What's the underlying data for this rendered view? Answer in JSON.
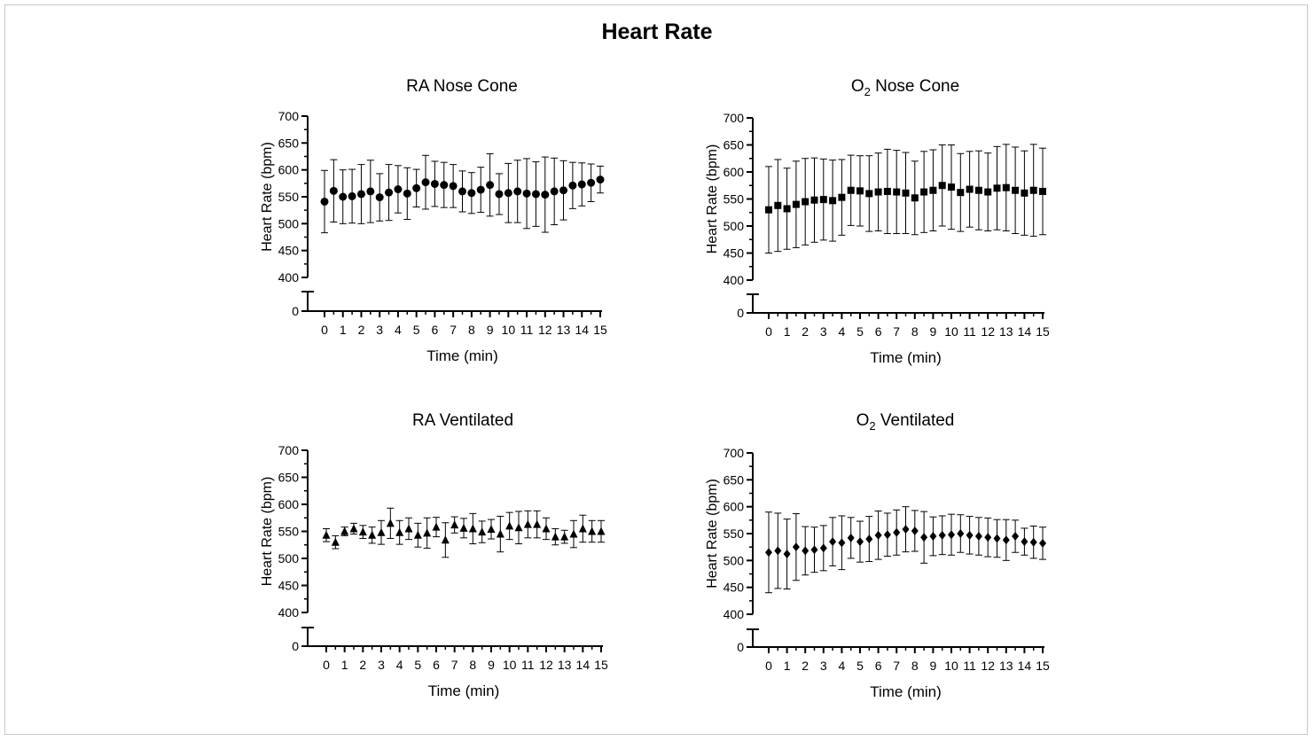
{
  "page": {
    "title": "Heart Rate"
  },
  "chart_data": [
    {
      "type": "scatter",
      "title": "RA Nose Cone",
      "title_main": "RA Nose Cone",
      "title_sub": "",
      "title_rest": "",
      "xlabel": "Time (min)",
      "ylabel": "Heart Rate (bpm)",
      "marker": "circle",
      "xlim": [
        0,
        15
      ],
      "ylim": [
        400,
        700
      ],
      "y_break": true,
      "yticks": [
        0,
        400,
        450,
        500,
        550,
        600,
        650,
        700
      ],
      "xticks": [
        0,
        1,
        2,
        3,
        4,
        5,
        6,
        7,
        8,
        9,
        10,
        11,
        12,
        13,
        14,
        15
      ],
      "x": [
        0,
        0.5,
        1,
        1.5,
        2,
        2.5,
        3,
        3.5,
        4,
        4.5,
        5,
        5.5,
        6,
        6.5,
        7,
        7.5,
        8,
        8.5,
        9,
        9.5,
        10,
        10.5,
        11,
        11.5,
        12,
        12.5,
        13,
        13.5,
        14,
        14.5,
        15
      ],
      "y": [
        541,
        561,
        550,
        551,
        555,
        560,
        549,
        558,
        564,
        556,
        566,
        577,
        574,
        572,
        570,
        560,
        557,
        563,
        572,
        555,
        557,
        560,
        556,
        555,
        554,
        560,
        562,
        571,
        573,
        576,
        582
      ],
      "error": [
        58,
        58,
        50,
        50,
        55,
        58,
        44,
        52,
        44,
        48,
        35,
        50,
        42,
        42,
        40,
        38,
        38,
        42,
        58,
        38,
        55,
        58,
        65,
        60,
        70,
        62,
        55,
        43,
        40,
        35,
        25
      ]
    },
    {
      "type": "scatter",
      "title": "O2 Nose Cone",
      "title_main": "O",
      "title_sub": "2",
      "title_rest": " Nose Cone",
      "xlabel": "Time (min)",
      "ylabel": "Heart Rate (bpm)",
      "marker": "square",
      "xlim": [
        0,
        15
      ],
      "ylim": [
        400,
        700
      ],
      "y_break": true,
      "yticks": [
        0,
        400,
        450,
        500,
        550,
        600,
        650,
        700
      ],
      "xticks": [
        0,
        1,
        2,
        3,
        4,
        5,
        6,
        7,
        8,
        9,
        10,
        11,
        12,
        13,
        14,
        15
      ],
      "x": [
        0,
        0.5,
        1,
        1.5,
        2,
        2.5,
        3,
        3.5,
        4,
        4.5,
        5,
        5.5,
        6,
        6.5,
        7,
        7.5,
        8,
        8.5,
        9,
        9.5,
        10,
        10.5,
        11,
        11.5,
        12,
        12.5,
        13,
        13.5,
        14,
        14.5,
        15
      ],
      "y": [
        530,
        538,
        532,
        540,
        545,
        548,
        549,
        547,
        553,
        566,
        565,
        560,
        563,
        564,
        563,
        561,
        552,
        563,
        566,
        575,
        572,
        562,
        568,
        566,
        563,
        570,
        571,
        566,
        561,
        566,
        564
      ],
      "error": [
        80,
        85,
        75,
        80,
        80,
        78,
        75,
        75,
        70,
        65,
        65,
        70,
        72,
        78,
        77,
        75,
        68,
        75,
        75,
        75,
        78,
        72,
        70,
        73,
        72,
        77,
        80,
        80,
        78,
        85,
        80
      ]
    },
    {
      "type": "scatter",
      "title": "RA Ventilated",
      "title_main": "RA Ventilated",
      "title_sub": "",
      "title_rest": "",
      "xlabel": "Time (min)",
      "ylabel": "Heart Rate (bpm)",
      "marker": "triangle",
      "xlim": [
        0,
        15
      ],
      "ylim": [
        400,
        700
      ],
      "y_break": true,
      "yticks": [
        0,
        400,
        450,
        500,
        550,
        600,
        650,
        700
      ],
      "xticks": [
        0,
        1,
        2,
        3,
        4,
        5,
        6,
        7,
        8,
        9,
        10,
        11,
        12,
        13,
        14,
        15
      ],
      "x": [
        0,
        0.5,
        1,
        1.5,
        2,
        2.5,
        3,
        3.5,
        4,
        4.5,
        5,
        5.5,
        6,
        6.5,
        7,
        7.5,
        8,
        8.5,
        9,
        9.5,
        10,
        10.5,
        11,
        11.5,
        12,
        12.5,
        13,
        13.5,
        14,
        14.5,
        15
      ],
      "y": [
        543,
        530,
        550,
        555,
        549,
        543,
        548,
        565,
        548,
        555,
        543,
        547,
        558,
        534,
        562,
        556,
        555,
        549,
        554,
        545,
        560,
        557,
        563,
        563,
        555,
        540,
        540,
        545,
        555,
        550,
        550
      ],
      "error": [
        12,
        12,
        8,
        10,
        12,
        15,
        22,
        28,
        22,
        20,
        22,
        28,
        18,
        32,
        15,
        18,
        28,
        20,
        18,
        33,
        25,
        30,
        25,
        25,
        20,
        15,
        12,
        25,
        25,
        20,
        20
      ]
    },
    {
      "type": "scatter",
      "title": "O2 Ventilated",
      "title_main": "O",
      "title_sub": "2",
      "title_rest": " Ventilated",
      "xlabel": "Time (min)",
      "ylabel": "Heart Rate (bpm)",
      "marker": "diamond",
      "xlim": [
        0,
        15
      ],
      "ylim": [
        400,
        700
      ],
      "y_break": true,
      "yticks": [
        0,
        400,
        450,
        500,
        550,
        600,
        650,
        700
      ],
      "xticks": [
        0,
        1,
        2,
        3,
        4,
        5,
        6,
        7,
        8,
        9,
        10,
        11,
        12,
        13,
        14,
        15
      ],
      "x": [
        0,
        0.5,
        1,
        1.5,
        2,
        2.5,
        3,
        3.5,
        4,
        4.5,
        5,
        5.5,
        6,
        6.5,
        7,
        7.5,
        8,
        8.5,
        9,
        9.5,
        10,
        10.5,
        11,
        11.5,
        12,
        12.5,
        13,
        13.5,
        14,
        14.5,
        15
      ],
      "y": [
        515,
        518,
        512,
        525,
        518,
        520,
        523,
        535,
        533,
        542,
        535,
        540,
        547,
        548,
        552,
        558,
        555,
        543,
        545,
        547,
        548,
        550,
        547,
        545,
        543,
        541,
        538,
        545,
        535,
        534,
        532
      ],
      "error": [
        75,
        70,
        65,
        62,
        45,
        42,
        42,
        45,
        50,
        38,
        38,
        42,
        45,
        40,
        42,
        42,
        38,
        48,
        36,
        36,
        38,
        35,
        35,
        35,
        36,
        35,
        38,
        30,
        25,
        30,
        30
      ]
    }
  ]
}
